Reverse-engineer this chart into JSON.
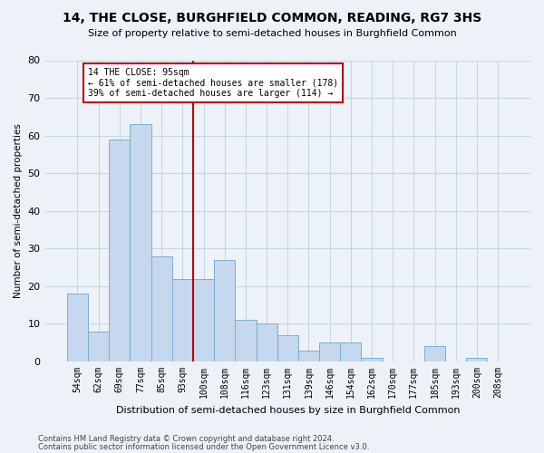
{
  "title": "14, THE CLOSE, BURGHFIELD COMMON, READING, RG7 3HS",
  "subtitle": "Size of property relative to semi-detached houses in Burghfield Common",
  "xlabel": "Distribution of semi-detached houses by size in Burghfield Common",
  "ylabel": "Number of semi-detached properties",
  "footnote1": "Contains HM Land Registry data © Crown copyright and database right 2024.",
  "footnote2": "Contains public sector information licensed under the Open Government Licence v3.0.",
  "categories": [
    "54sqm",
    "62sqm",
    "69sqm",
    "77sqm",
    "85sqm",
    "93sqm",
    "100sqm",
    "108sqm",
    "116sqm",
    "123sqm",
    "131sqm",
    "139sqm",
    "146sqm",
    "154sqm",
    "162sqm",
    "170sqm",
    "177sqm",
    "185sqm",
    "193sqm",
    "200sqm",
    "208sqm"
  ],
  "values": [
    18,
    8,
    59,
    63,
    28,
    22,
    22,
    27,
    11,
    10,
    7,
    3,
    5,
    5,
    1,
    0,
    0,
    4,
    0,
    1,
    0
  ],
  "bar_color": "#c5d8ee",
  "bar_edge_color": "#7aaed4",
  "grid_color": "#c8d4e4",
  "background_color": "#edf2f9",
  "vline_x": 6.0,
  "vline_color": "#bb0000",
  "annotation_line1": "14 THE CLOSE: 95sqm",
  "annotation_line2": "← 61% of semi-detached houses are smaller (178)",
  "annotation_line3": "39% of semi-detached houses are larger (114) →",
  "annotation_box_color": "#ffffff",
  "annotation_box_edge": "#bb0000",
  "ylim": [
    0,
    80
  ],
  "yticks": [
    0,
    10,
    20,
    30,
    40,
    50,
    60,
    70,
    80
  ]
}
